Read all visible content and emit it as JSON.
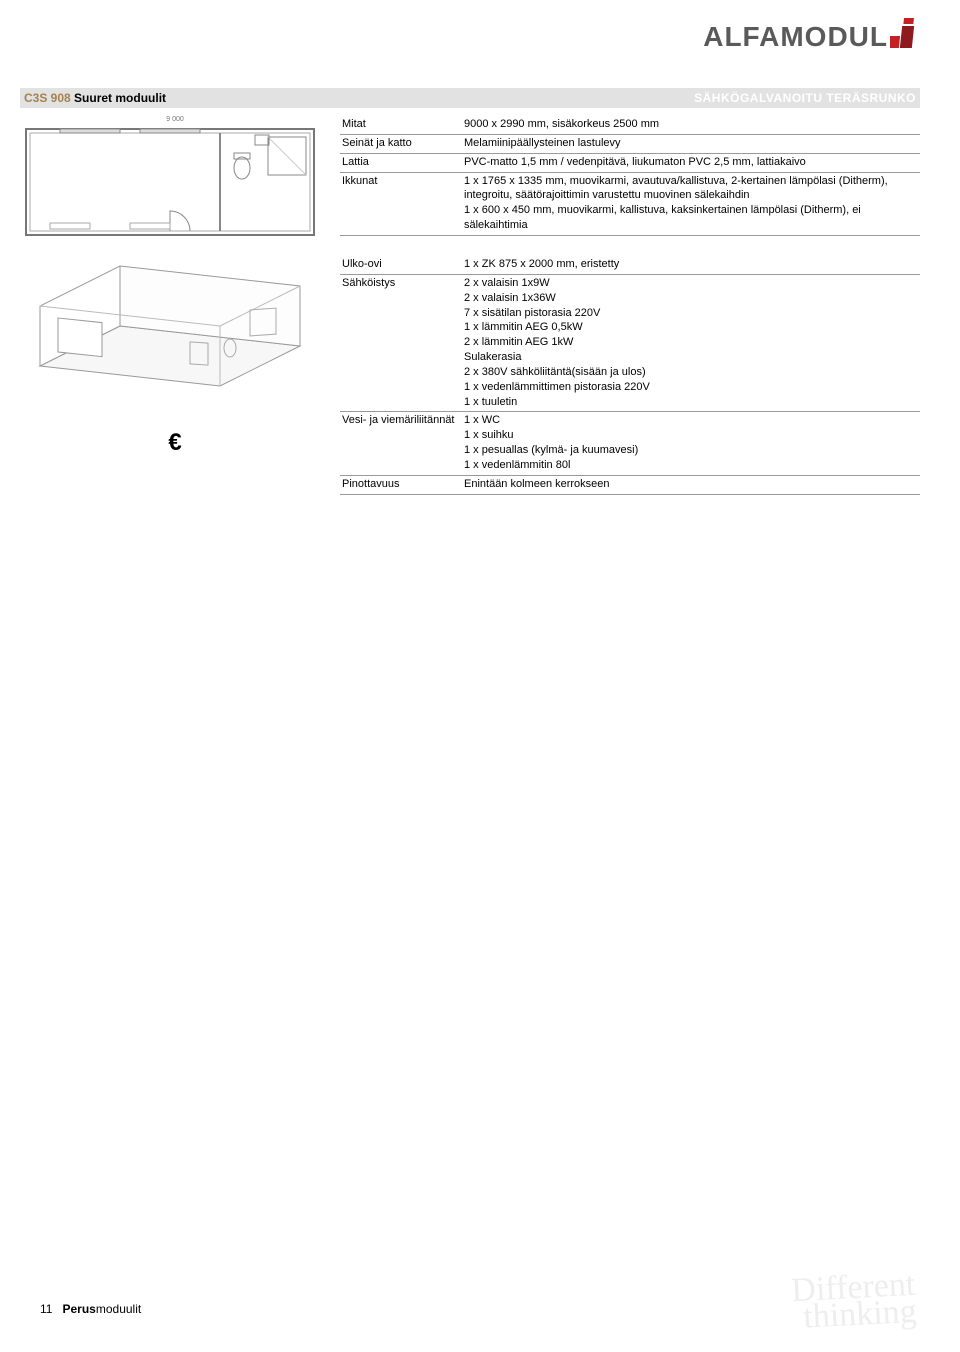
{
  "logo": {
    "text": "ALFAMODUL",
    "mark_color_1": "#c42127",
    "mark_color_2": "#8f1a1e"
  },
  "title_bar": {
    "code": "C3S 908",
    "name": "Suuret moduulit",
    "right": "SÄHKÖGALVANOITU TERÄSRUNKO",
    "bg": "#e2e2e2",
    "code_color": "#a4824d"
  },
  "block1": {
    "rows": [
      {
        "label": "Mitat",
        "value": "9000 x 2990 mm, sisäkorkeus 2500 mm"
      },
      {
        "label": "Seinät ja katto",
        "value": "Melamiinipäällysteinen lastulevy"
      },
      {
        "label": "Lattia",
        "value": "PVC-matto 1,5 mm / vedenpitävä, liukumaton PVC 2,5 mm, lattiakaivo"
      },
      {
        "label": "Ikkunat",
        "value": "1 x 1765 x 1335 mm, muovikarmi, avautuva/kallistuva, 2-kertainen lämpölasi (Ditherm), integroitu, säätörajoittimin varustettu muovinen sälekaihdin\n1 x 600 x 450 mm, muovikarmi, kallistuva, kaksinkertainen lämpölasi (Ditherm), ei sälekaihtimia"
      }
    ]
  },
  "block2": {
    "rows": [
      {
        "label": "Ulko-ovi",
        "value": "1 x ZK 875 x 2000 mm, eristetty"
      },
      {
        "label": "Sähköistys",
        "value": "2 x valaisin 1x9W\n2 x valaisin 1x36W\n7 x sisätilan pistorasia 220V\n1 x lämmitin AEG 0,5kW\n2 x lämmitin AEG 1kW\nSulakerasia\n2 x 380V sähköliitäntä(sisään ja ulos)\n1 x vedenlämmittimen pistorasia 220V\n1 x tuuletin"
      },
      {
        "label": "Vesi- ja viemäriliitännät",
        "value": "1 x WC\n1 x suihku\n1 x pesuallas (kylmä- ja kuumavesi)\n1 x vedenlämmitin 80l"
      },
      {
        "label": "Pinottavuus",
        "value": "Enintään kolmeen kerrokseen"
      }
    ],
    "euro": "€"
  },
  "floorplan": {
    "outer_dim": "9 000",
    "stroke": "#888888",
    "fill": "#ffffff"
  },
  "footer": {
    "page": "11",
    "title_bold": "Perus",
    "title_rest": "moduulit"
  },
  "watermark": {
    "line1": "Different",
    "line2": "thinking",
    "color": "#eeeeee"
  }
}
